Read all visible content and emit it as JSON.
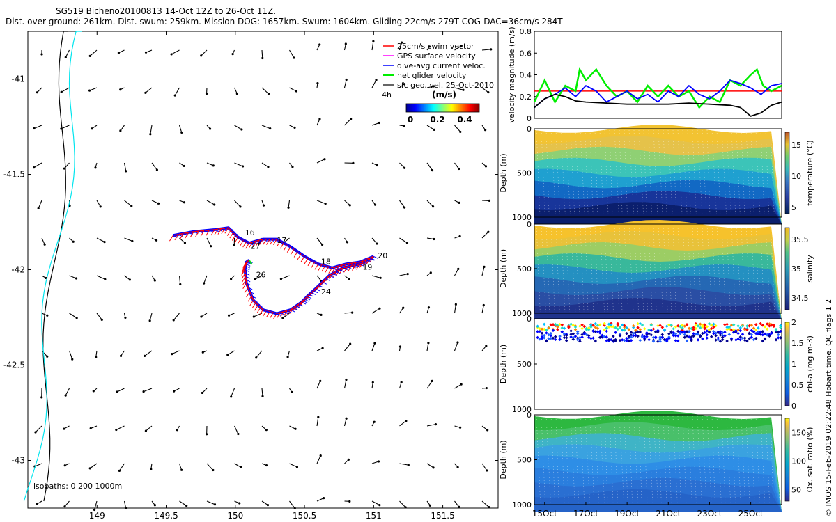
{
  "title_line1": "SG519 Bicheno20100813 14-Oct 12Z to 26-Oct 11Z.",
  "title_line2": "Dist. over ground: 261km. Dist. swum: 259km. Mission DOG: 1657km. Swum: 1604km. Gliding 22cm/s 279T COG-DAC=36cm/s 284T",
  "credit": "© IMOS 15-Feb-2019 02:22:48 Hobart time. QC flags 1  2",
  "colors": {
    "swim": "#ff0000",
    "gps": "#ff00ff",
    "dac": "#0000ff",
    "net": "#00ee00",
    "geo": "#000000",
    "coast": "#000000",
    "isobath200": "#00e5ee"
  },
  "chart_data": [
    {
      "id": "map",
      "type": "scatter",
      "xlim": [
        148.5,
        151.9
      ],
      "ylim": [
        -43.25,
        -40.75
      ],
      "xticks": [
        "149",
        "149.5",
        "150",
        "150.5",
        "151",
        "151.5"
      ],
      "yticks": [
        "-41",
        "-41.5",
        "-42",
        "-42.5",
        "-43"
      ],
      "legend": {
        "entries": [
          "25cm/s swim vector",
          "GPS surface velocity",
          "dive-avg current veloc.",
          "net glider velocity",
          "sfc geo. vel. 25-Oct-2010"
        ],
        "time_label": "4h",
        "colorbar_title": "(m/s)",
        "colorbar_ticks": [
          "0",
          "0.2",
          "0.4"
        ]
      },
      "isobaths_label": "isobaths: 0   200  1000m",
      "track": [
        [
          149.55,
          -41.82
        ],
        [
          149.7,
          -41.8
        ],
        [
          149.85,
          -41.79
        ],
        [
          149.95,
          -41.78
        ],
        [
          150.02,
          -41.83
        ],
        [
          150.1,
          -41.86
        ],
        [
          150.2,
          -41.84
        ],
        [
          150.3,
          -41.84
        ],
        [
          150.4,
          -41.88
        ],
        [
          150.5,
          -41.93
        ],
        [
          150.6,
          -41.97
        ],
        [
          150.7,
          -41.99
        ],
        [
          150.8,
          -41.97
        ],
        [
          150.9,
          -41.96
        ],
        [
          151.0,
          -41.93
        ],
        [
          150.9,
          -41.97
        ],
        [
          150.78,
          -41.99
        ],
        [
          150.68,
          -42.03
        ],
        [
          150.58,
          -42.1
        ],
        [
          150.52,
          -42.14
        ],
        [
          150.48,
          -42.17
        ],
        [
          150.4,
          -42.21
        ],
        [
          150.3,
          -42.23
        ],
        [
          150.2,
          -42.21
        ],
        [
          150.13,
          -42.16
        ],
        [
          150.08,
          -42.07
        ],
        [
          150.07,
          -42.0
        ],
        [
          150.08,
          -41.96
        ],
        [
          150.1,
          -41.95
        ]
      ],
      "track_labels": [
        {
          "label": "16",
          "lon": 150.07,
          "lat": -41.82
        },
        {
          "label": "17",
          "lon": 150.3,
          "lat": -41.86
        },
        {
          "label": "18",
          "lon": 150.62,
          "lat": -41.97
        },
        {
          "label": "19",
          "lon": 150.92,
          "lat": -42.0
        },
        {
          "label": "20",
          "lon": 151.03,
          "lat": -41.94
        },
        {
          "label": "24",
          "lon": 150.62,
          "lat": -42.13
        },
        {
          "label": "26",
          "lon": 150.15,
          "lat": -42.04
        },
        {
          "label": "27",
          "lon": 150.11,
          "lat": -41.89
        }
      ]
    },
    {
      "id": "velocity",
      "type": "line",
      "xlim": [
        14.5,
        26.5
      ],
      "ylim": [
        0,
        0.8
      ],
      "ylabel": "velocity magnitude (m/s)",
      "yticks": [
        "0",
        "0.2",
        "0.4",
        "0.6",
        "0.8"
      ],
      "series": [
        {
          "name": "25cm/s swim vector",
          "values": [
            [
              14.5,
              0.25
            ],
            [
              26.5,
              0.25
            ]
          ]
        },
        {
          "name": "net glider velocity",
          "values": [
            [
              14.5,
              0.15
            ],
            [
              15,
              0.35
            ],
            [
              15.5,
              0.15
            ],
            [
              16,
              0.3
            ],
            [
              16.5,
              0.25
            ],
            [
              16.7,
              0.45
            ],
            [
              17,
              0.35
            ],
            [
              17.5,
              0.45
            ],
            [
              18,
              0.3
            ],
            [
              18.5,
              0.2
            ],
            [
              19,
              0.25
            ],
            [
              19.5,
              0.15
            ],
            [
              20,
              0.3
            ],
            [
              20.5,
              0.2
            ],
            [
              21,
              0.3
            ],
            [
              21.5,
              0.2
            ],
            [
              22,
              0.25
            ],
            [
              22.5,
              0.1
            ],
            [
              23,
              0.2
            ],
            [
              23.5,
              0.15
            ],
            [
              24,
              0.35
            ],
            [
              24.5,
              0.3
            ],
            [
              25,
              0.4
            ],
            [
              25.3,
              0.45
            ],
            [
              25.6,
              0.3
            ],
            [
              26,
              0.25
            ],
            [
              26.5,
              0.3
            ]
          ]
        },
        {
          "name": "dive-avg current veloc.",
          "values": [
            [
              14.5,
              0.1
            ],
            [
              15,
              0.18
            ],
            [
              15.5,
              0.22
            ],
            [
              16,
              0.28
            ],
            [
              16.5,
              0.2
            ],
            [
              17,
              0.3
            ],
            [
              17.5,
              0.25
            ],
            [
              18,
              0.15
            ],
            [
              18.5,
              0.2
            ],
            [
              19,
              0.25
            ],
            [
              19.5,
              0.18
            ],
            [
              20,
              0.22
            ],
            [
              20.5,
              0.15
            ],
            [
              21,
              0.25
            ],
            [
              21.5,
              0.2
            ],
            [
              22,
              0.3
            ],
            [
              22.5,
              0.22
            ],
            [
              23,
              0.18
            ],
            [
              23.5,
              0.25
            ],
            [
              24,
              0.35
            ],
            [
              24.5,
              0.32
            ],
            [
              25,
              0.28
            ],
            [
              25.5,
              0.22
            ],
            [
              26,
              0.3
            ],
            [
              26.5,
              0.32
            ]
          ]
        },
        {
          "name": "sfc geo. vel. 25-Oct-2010",
          "values": [
            [
              14.5,
              0.1
            ],
            [
              15,
              0.18
            ],
            [
              15.5,
              0.22
            ],
            [
              16,
              0.2
            ],
            [
              16.5,
              0.16
            ],
            [
              17,
              0.15
            ],
            [
              18,
              0.14
            ],
            [
              19,
              0.13
            ],
            [
              20,
              0.13
            ],
            [
              21,
              0.13
            ],
            [
              22,
              0.14
            ],
            [
              23,
              0.13
            ],
            [
              24,
              0.12
            ],
            [
              24.5,
              0.1
            ],
            [
              25,
              0.02
            ],
            [
              25.5,
              0.05
            ],
            [
              26,
              0.12
            ],
            [
              26.5,
              0.15
            ]
          ]
        }
      ]
    },
    {
      "id": "temperature",
      "type": "heatmap",
      "xlim": [
        14.5,
        26.5
      ],
      "ylim": [
        1000,
        0
      ],
      "ylabel": "Depth (m)",
      "yticks": [
        "0",
        "500",
        "1000"
      ],
      "clabel": "temperature (°C)",
      "cticks": [
        "5",
        "10",
        "15"
      ],
      "crange": [
        4,
        17
      ]
    },
    {
      "id": "salinity",
      "type": "heatmap",
      "xlim": [
        14.5,
        26.5
      ],
      "ylim": [
        1000,
        0
      ],
      "ylabel": "Depth (m)",
      "yticks": [
        "0",
        "500",
        "1000"
      ],
      "clabel": "salinity",
      "cticks": [
        "34.5",
        "35",
        "35.5"
      ],
      "crange": [
        34.3,
        35.7
      ]
    },
    {
      "id": "chla",
      "type": "heatmap",
      "xlim": [
        14.5,
        26.5
      ],
      "ylim": [
        1000,
        0
      ],
      "ylabel": "Depth (m)",
      "yticks": [
        "0",
        "500",
        "1000"
      ],
      "clabel": "chl-a (mg m-3)",
      "cticks": [
        "0",
        "0.5",
        "1",
        "1.5",
        "2"
      ],
      "crange": [
        0,
        2
      ]
    },
    {
      "id": "oxygen",
      "type": "heatmap",
      "xlim": [
        14.5,
        26.5
      ],
      "ylim": [
        1000,
        0
      ],
      "ylabel": "Depth (m)",
      "yticks": [
        "0",
        "500",
        "1000"
      ],
      "clabel": "Ox. sat. ratio (%)",
      "cticks": [
        "50",
        "100",
        "150"
      ],
      "crange": [
        30,
        175
      ]
    },
    {
      "id": "time_axis",
      "type": "table",
      "x_ticklabels": [
        "15Oct",
        "17Oct",
        "19Oct",
        "21Oct",
        "23Oct",
        "25Oct"
      ]
    }
  ]
}
